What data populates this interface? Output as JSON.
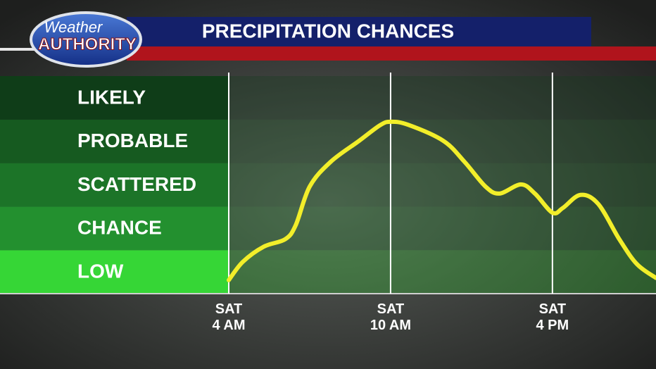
{
  "header": {
    "logo_top": "Weather",
    "logo_bottom": "AUTHORITY"
  },
  "chart_data": {
    "type": "line",
    "title": "PRECIPITATION CHANCES",
    "x": [
      4,
      4.52,
      5.3,
      6.09,
      6.48,
      7.0,
      7.78,
      8.83,
      9.61,
      10,
      10.65,
      11.96,
      12.74,
      13.52,
      14.04,
      14.83,
      15.35,
      16,
      16.39,
      17.04,
      17.7,
      18.48,
      19.13,
      19.84
    ],
    "series": [
      {
        "color": "#f2ee2a",
        "values": [
          0.31,
          0.73,
          1.08,
          1.25,
          1.57,
          2.46,
          3.03,
          3.51,
          3.87,
          3.95,
          3.88,
          3.51,
          3.03,
          2.46,
          2.3,
          2.51,
          2.3,
          1.86,
          1.97,
          2.27,
          2.06,
          1.25,
          0.68,
          0.36
        ]
      }
    ],
    "xlim": [
      4,
      19.84
    ],
    "xticks": [
      {
        "value": 4,
        "label": "SAT\n4 AM"
      },
      {
        "value": 10,
        "label": "SAT\n10 AM"
      },
      {
        "value": 16,
        "label": "SAT\n4 PM"
      }
    ],
    "ylim": [
      0,
      5
    ],
    "yticks": [
      {
        "value": 0.5,
        "label": "LOW"
      },
      {
        "value": 1.5,
        "label": "CHANCE"
      },
      {
        "value": 2.5,
        "label": "SCATTERED"
      },
      {
        "value": 3.5,
        "label": "PROBABLE"
      },
      {
        "value": 4.5,
        "label": "LIKELY"
      }
    ],
    "band_colors": [
      "#36d636",
      "#23902f",
      "#1c7428",
      "#165a20",
      "#0f3d18"
    ]
  }
}
